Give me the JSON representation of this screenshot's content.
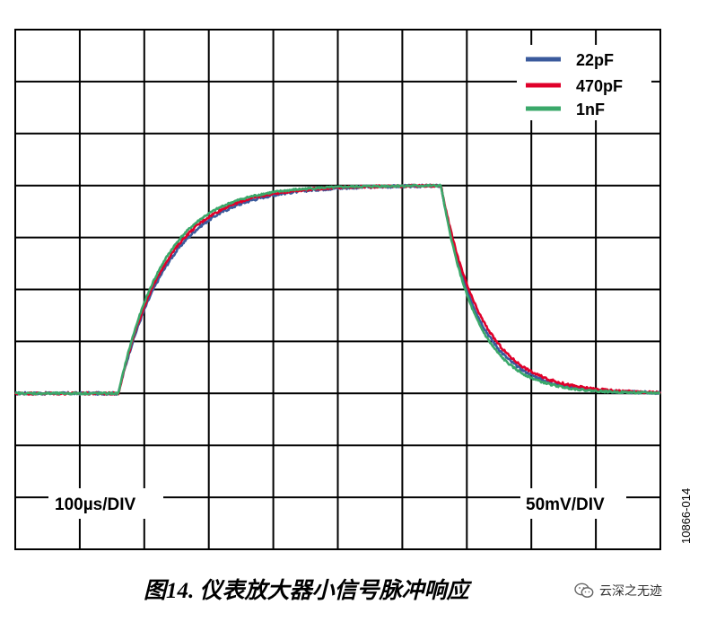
{
  "chart_data": {
    "type": "line",
    "time_scale_label": "100µs/DIV",
    "volt_scale_label": "50mV/DIV",
    "x_divisions": 10,
    "y_divisions": 10,
    "xlim": [
      0,
      10
    ],
    "ylim": [
      0,
      10
    ],
    "grid": true,
    "legend_position": "top-right",
    "pulse": {
      "baseline": 3.0,
      "top": 7.0,
      "rise_start": 1.6,
      "fall_start": 6.6
    },
    "series": [
      {
        "name": "22pF",
        "color": "#3a5a9c",
        "rise_tau": 0.78,
        "fall_tau": 0.58,
        "noise": 0.025
      },
      {
        "name": "470pF",
        "color": "#e0002a",
        "rise_tau": 0.74,
        "fall_tau": 0.62,
        "noise": 0.022
      },
      {
        "name": "1nF",
        "color": "#3aa86a",
        "rise_tau": 0.7,
        "fall_tau": 0.54,
        "noise": 0.018
      }
    ]
  },
  "figure_id": "10866-014",
  "caption": "图14. 仪表放大器小信号脉冲响应",
  "watermark": {
    "icon": "wechat-icon",
    "text": "云深之无迹"
  }
}
